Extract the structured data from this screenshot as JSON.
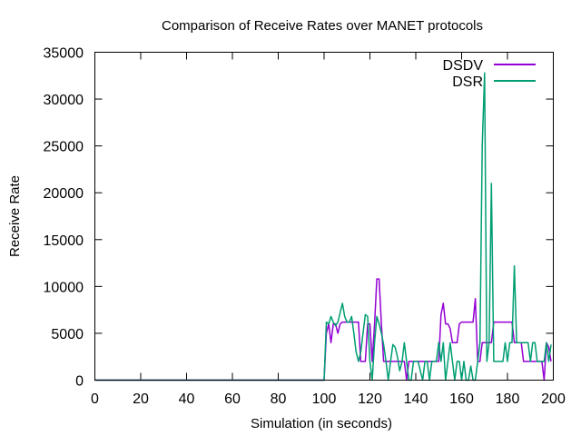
{
  "chart_data": {
    "type": "line",
    "title": "Comparison of Receive Rates over MANET protocols",
    "xlabel": "Simulation (in seconds)",
    "ylabel": "Receive Rate",
    "xlim": [
      0,
      200
    ],
    "ylim": [
      0,
      35000
    ],
    "xticks": [
      0,
      20,
      40,
      60,
      80,
      100,
      120,
      140,
      160,
      180,
      200
    ],
    "yticks": [
      0,
      5000,
      10000,
      15000,
      20000,
      25000,
      30000,
      35000
    ],
    "grid": false,
    "legend_position": "top-right",
    "series": [
      {
        "name": "DSDV",
        "color": "#9400d3",
        "x": [
          0,
          100,
          101,
          102,
          103,
          104,
          105,
          106,
          107,
          108,
          110,
          115,
          116,
          117,
          118,
          119,
          120,
          121,
          122,
          123,
          124,
          125,
          126,
          127,
          128,
          130,
          135,
          136,
          137,
          138,
          139,
          140,
          141,
          142,
          143,
          145,
          150,
          151,
          152,
          153,
          154,
          155,
          156,
          157,
          158,
          159,
          160,
          162,
          165,
          166,
          167,
          168,
          169,
          170,
          172,
          173,
          174,
          175,
          178,
          180,
          182,
          183,
          184,
          185,
          186,
          187,
          188,
          190,
          193,
          195,
          196,
          197,
          198,
          199
        ],
        "y": [
          0,
          0,
          5000,
          6000,
          4000,
          6000,
          6000,
          5000,
          6000,
          6200,
          6200,
          6200,
          2000,
          2000,
          2000,
          6000,
          6000,
          2000,
          6000,
          10800,
          10800,
          6000,
          2000,
          2000,
          2000,
          2000,
          2000,
          0,
          2000,
          2000,
          2000,
          2000,
          2000,
          2000,
          2000,
          2000,
          2000,
          7000,
          8200,
          6000,
          6000,
          5500,
          4000,
          4000,
          4000,
          6000,
          6200,
          6200,
          6200,
          8700,
          2000,
          2000,
          4000,
          4000,
          4000,
          4000,
          6200,
          6200,
          6200,
          6200,
          6200,
          4000,
          4000,
          4000,
          4000,
          2000,
          2000,
          2000,
          2000,
          2000,
          0,
          4000,
          3500,
          2000
        ]
      },
      {
        "name": "DSR",
        "color": "#009e73",
        "x": [
          0,
          100,
          101,
          102,
          103,
          104,
          105,
          106,
          107,
          108,
          109,
          110,
          111,
          112,
          113,
          114,
          115,
          116,
          117,
          118,
          119,
          120,
          121,
          122,
          123,
          124,
          125,
          126,
          127,
          128,
          129,
          130,
          131,
          132,
          133,
          134,
          135,
          136,
          137,
          138,
          139,
          140,
          141,
          142,
          143,
          144,
          145,
          146,
          147,
          148,
          149,
          150,
          151,
          152,
          153,
          154,
          155,
          156,
          157,
          158,
          159,
          160,
          161,
          162,
          163,
          164,
          165,
          166,
          167,
          168,
          169,
          170,
          171,
          172,
          173,
          174,
          175,
          176,
          177,
          178,
          179,
          180,
          181,
          182,
          183,
          184,
          185,
          186,
          187,
          188,
          189,
          190,
          191,
          192,
          193,
          194,
          195,
          196,
          197,
          198,
          199
        ],
        "y": [
          0,
          0,
          6200,
          6000,
          6800,
          6200,
          5800,
          6200,
          7200,
          8200,
          6800,
          6200,
          6200,
          6800,
          5000,
          3000,
          2000,
          3000,
          5000,
          7000,
          6800,
          2000,
          0,
          4000,
          6800,
          6000,
          5000,
          3800,
          2000,
          0,
          2000,
          3800,
          3500,
          2500,
          1000,
          2000,
          4000,
          2000,
          0,
          0,
          2000,
          2000,
          2000,
          1000,
          0,
          2000,
          2000,
          0,
          2000,
          2000,
          2000,
          4000,
          2000,
          4000,
          0,
          2000,
          4000,
          2000,
          0,
          2000,
          2000,
          0,
          2000,
          0,
          0,
          1500,
          0,
          0,
          2000,
          4000,
          25000,
          32800,
          2000,
          4000,
          21000,
          2000,
          2000,
          2000,
          2000,
          2000,
          4000,
          2000,
          4000,
          4000,
          12200,
          4000,
          4000,
          4000,
          4000,
          4000,
          4000,
          2000,
          4000,
          4000,
          2000,
          2000,
          2000,
          2000,
          4000,
          2000,
          3800
        ]
      }
    ]
  }
}
